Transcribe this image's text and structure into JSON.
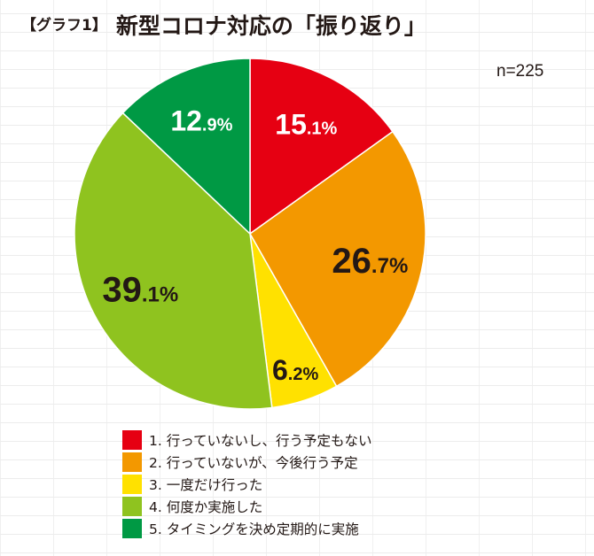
{
  "title": {
    "prefix": "【グラフ1】",
    "main": "新型コロナ対応の「振り返り」"
  },
  "chart_data": {
    "type": "pie",
    "title": "新型コロナ対応の「振り返り」",
    "n_label": "n=225",
    "categories": [
      "1. 行っていないし、行う予定もない",
      "2. 行っていないが、今後行う予定",
      "3. 一度だけ行った",
      "4. 何度か実施した",
      "5. タイミングを決め定期的に実施"
    ],
    "values": [
      15.1,
      26.7,
      6.2,
      39.1,
      12.9
    ],
    "labels": [
      [
        "15",
        ".1%"
      ],
      [
        "26",
        ".7%"
      ],
      [
        "6",
        ".2%"
      ],
      [
        "39",
        ".1%"
      ],
      [
        "12",
        ".9%"
      ]
    ],
    "colors": [
      "#e60012",
      "#f39800",
      "#ffe100",
      "#8fc31f",
      "#009944"
    ],
    "label_colors": [
      "#ffffff",
      "#231815",
      "#231815",
      "#231815",
      "#ffffff"
    ],
    "legend_placement": "bottom"
  }
}
